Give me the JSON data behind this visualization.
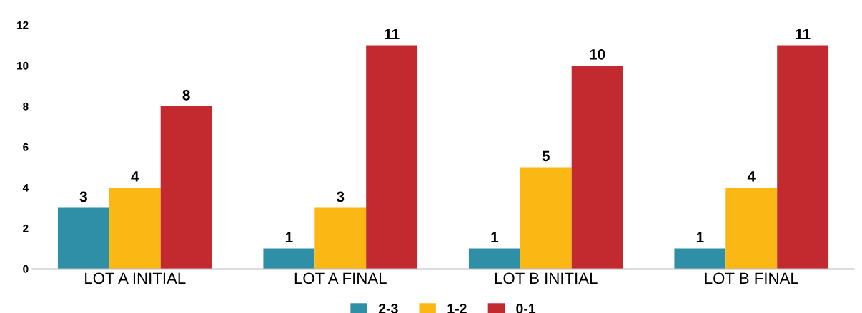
{
  "chart_data": {
    "type": "bar",
    "categories": [
      "LOT A INITIAL",
      "LOT A FINAL",
      "LOT B INITIAL",
      "LOT B FINAL"
    ],
    "series": [
      {
        "name": "2-3",
        "color": "#2e8fa6",
        "values": [
          3,
          1,
          1,
          1
        ]
      },
      {
        "name": "1-2",
        "color": "#fbb713",
        "values": [
          4,
          3,
          5,
          4
        ]
      },
      {
        "name": "0-1",
        "color": "#c22a2f",
        "values": [
          8,
          11,
          10,
          11
        ]
      }
    ],
    "ylim": [
      0,
      12
    ],
    "yticks": [
      0,
      2,
      4,
      6,
      8,
      10,
      12
    ],
    "grid": false,
    "legend": "bottom",
    "data_labels": true
  }
}
